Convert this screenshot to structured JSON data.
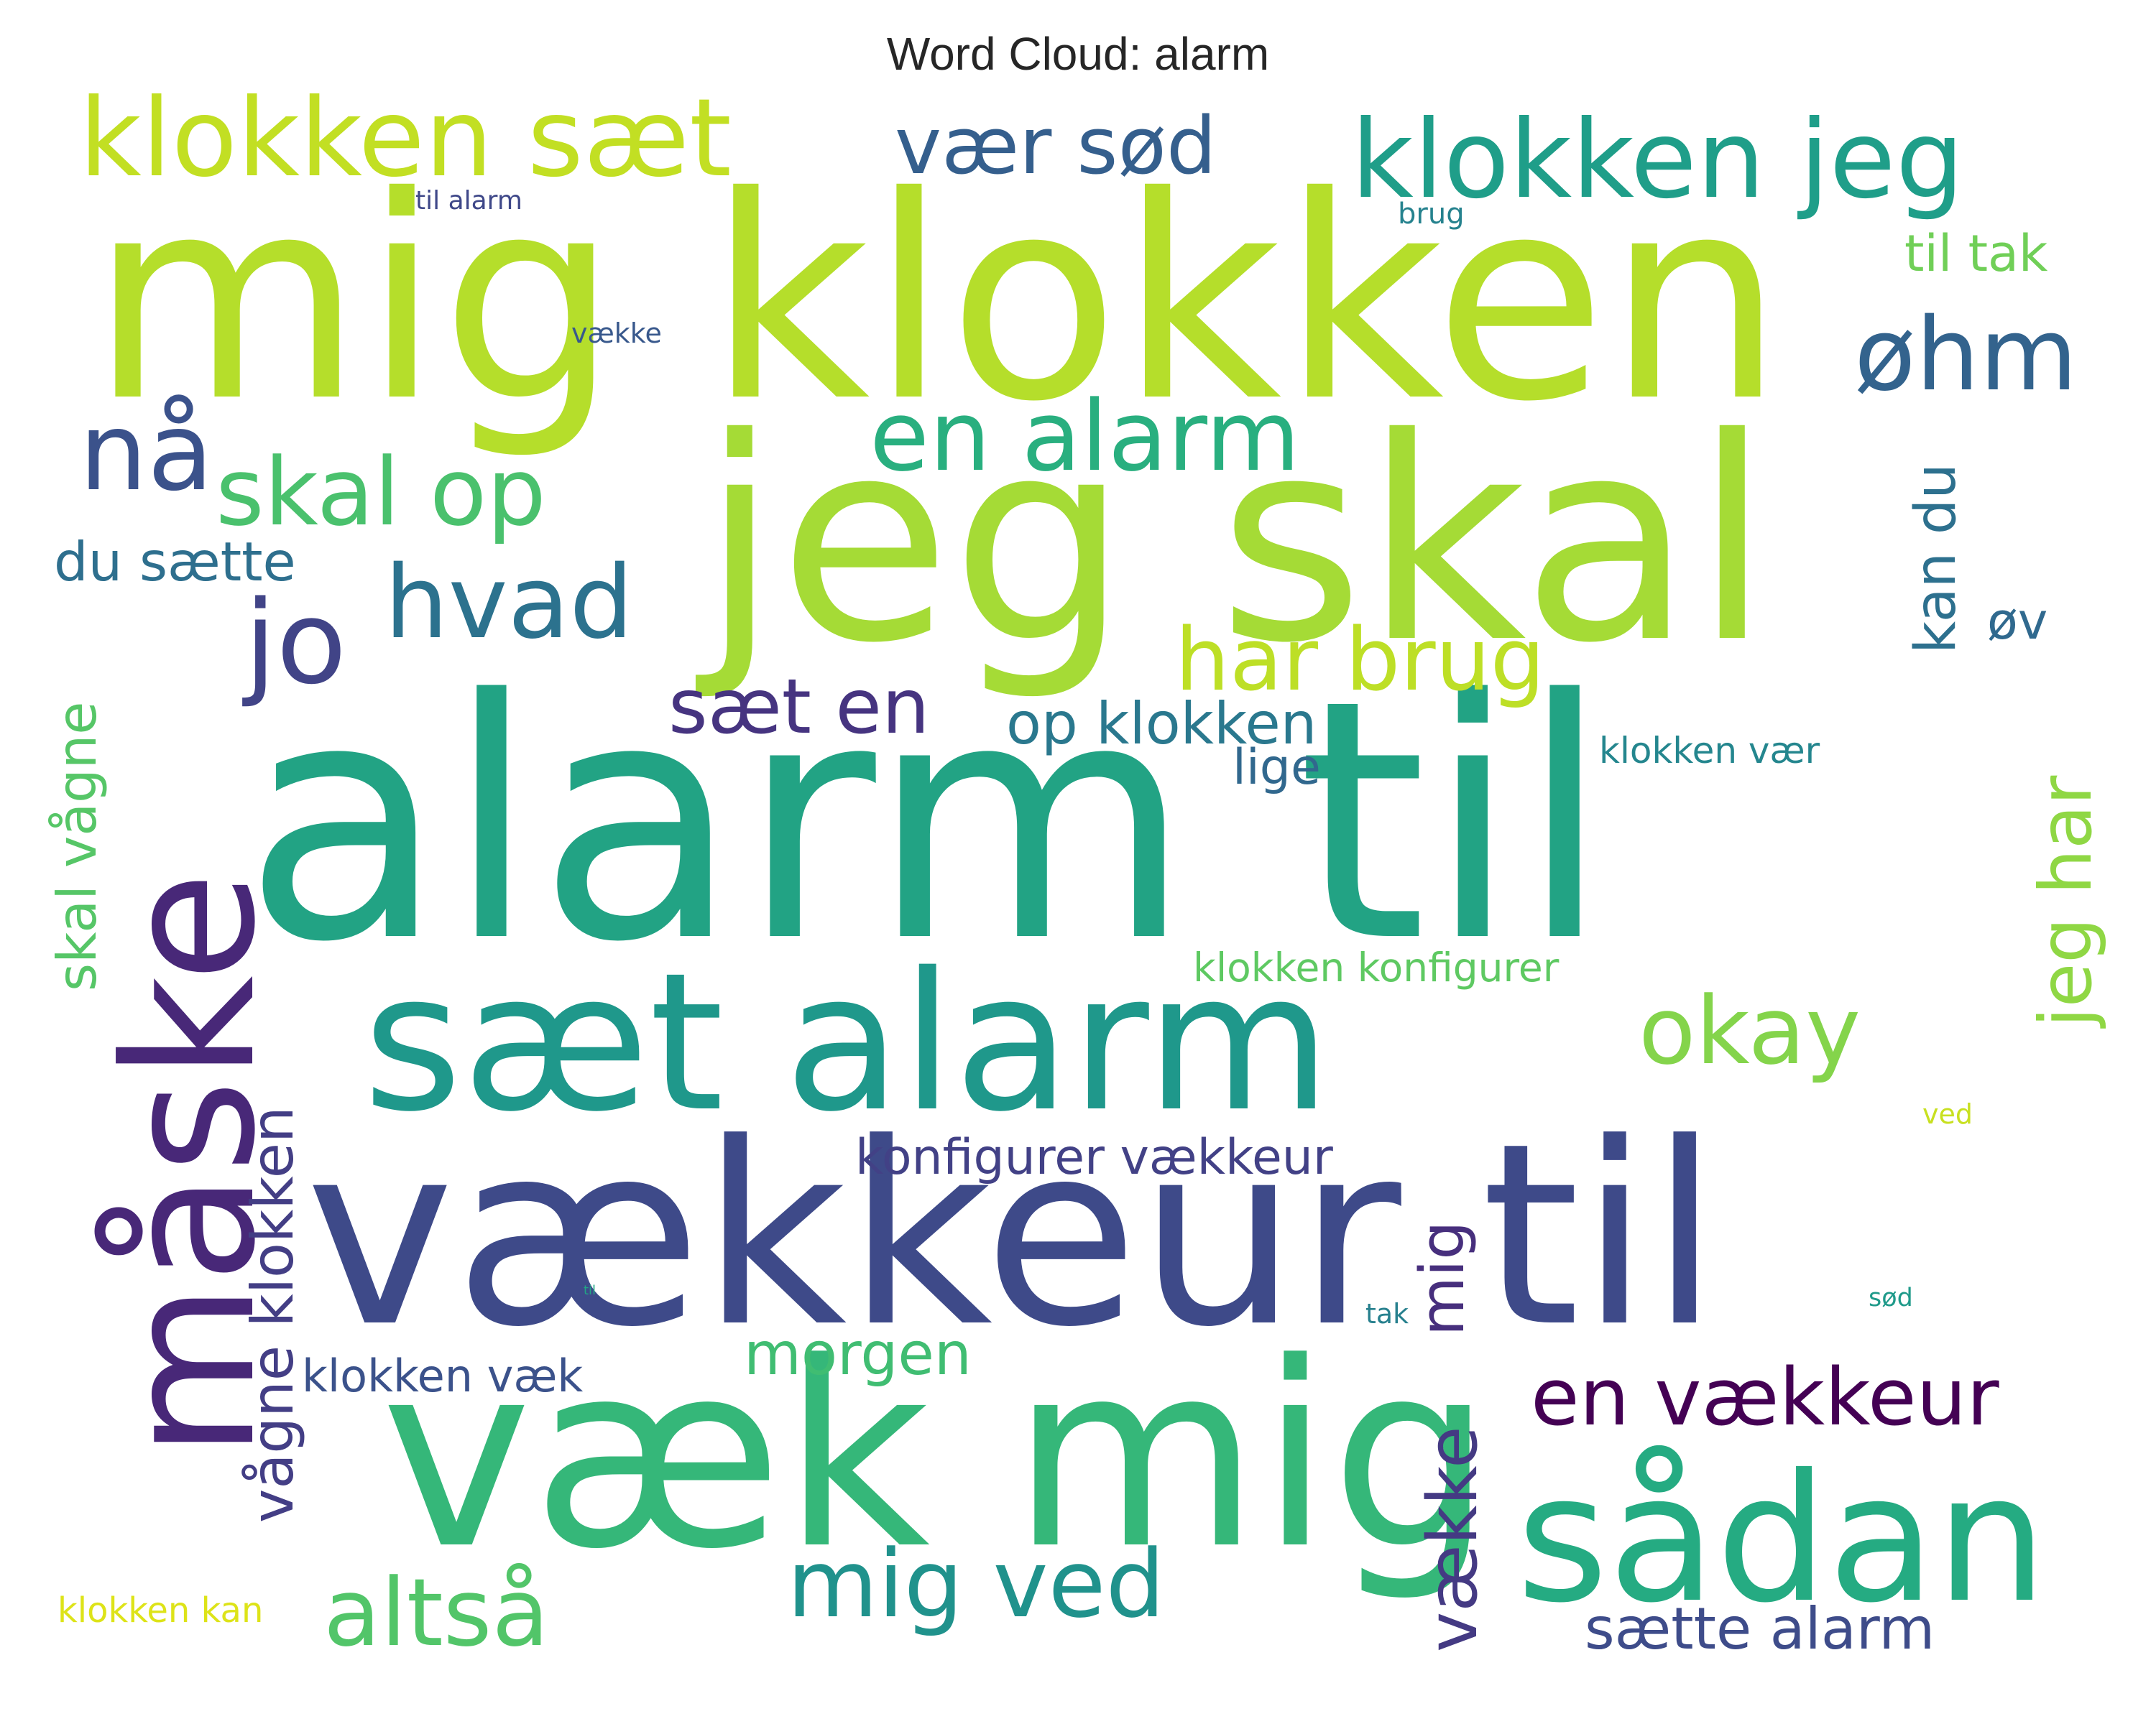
{
  "title": "Word Cloud: alarm",
  "words": [
    {
      "text": "alarm til",
      "color": "#22a384"
    },
    {
      "text": "mig klokken",
      "color": "#b5de2b"
    },
    {
      "text": "jeg skal",
      "color": "#a5db36"
    },
    {
      "text": "vækkeur til",
      "color": "#3e4a89"
    },
    {
      "text": "væk mig",
      "color": "#35b779"
    },
    {
      "text": "sæt alarm",
      "color": "#1f988b"
    },
    {
      "text": "måske",
      "color": "#482878"
    },
    {
      "text": "sådan",
      "color": "#25ab82"
    },
    {
      "text": "klokken sæt",
      "color": "#c2df23"
    },
    {
      "text": "klokken jeg",
      "color": "#1f9e89"
    },
    {
      "text": "en alarm",
      "color": "#29af7f"
    },
    {
      "text": "skal op",
      "color": "#4ac16d"
    },
    {
      "text": "vær sød",
      "color": "#355f8d"
    },
    {
      "text": "øhm",
      "color": "#33638d"
    },
    {
      "text": "nå",
      "color": "#3b528b"
    },
    {
      "text": "jo",
      "color": "#414487"
    },
    {
      "text": "hvad",
      "color": "#2c728e"
    },
    {
      "text": "har brug",
      "color": "#bddf26"
    },
    {
      "text": "sæt en",
      "color": "#463480"
    },
    {
      "text": "op klokken",
      "color": "#2a788e"
    },
    {
      "text": "lige",
      "color": "#31688e"
    },
    {
      "text": "du sætte",
      "color": "#2e6f8e"
    },
    {
      "text": "okay",
      "color": "#84d44b"
    },
    {
      "text": "jeg har",
      "color": "#8fd744"
    },
    {
      "text": "kan du",
      "color": "#2d708e"
    },
    {
      "text": "øv",
      "color": "#30698e"
    },
    {
      "text": "klokken vær",
      "color": "#24868e"
    },
    {
      "text": "til tak",
      "color": "#70cf57"
    },
    {
      "text": "brug",
      "color": "#26828e"
    },
    {
      "text": "til alarm",
      "color": "#3f4889"
    },
    {
      "text": "vække",
      "color": "#38588c"
    },
    {
      "text": "skal vågne",
      "color": "#56c667"
    },
    {
      "text": "klokken konfigurer",
      "color": "#5ec962"
    },
    {
      "text": "konfigurer vækkeur",
      "color": "#424186"
    },
    {
      "text": "mig",
      "color": "#472f7d"
    },
    {
      "text": "vågne klokken",
      "color": "#433e85"
    },
    {
      "text": "morgen",
      "color": "#40bd72"
    },
    {
      "text": "klokken væk",
      "color": "#3b528b"
    },
    {
      "text": "en vækkeur",
      "color": "#440154"
    },
    {
      "text": "vække",
      "color": "#443a83"
    },
    {
      "text": "mig ved",
      "color": "#20928c"
    },
    {
      "text": "altså",
      "color": "#52c569"
    },
    {
      "text": "sætte alarm",
      "color": "#3e4c8a"
    },
    {
      "text": "klokken kan",
      "color": "#dde318"
    },
    {
      "text": "ved",
      "color": "#c8e020"
    },
    {
      "text": "sød",
      "color": "#1f9a8a"
    },
    {
      "text": "tak",
      "color": "#27808e"
    },
    {
      "text": "til",
      "color": "#21a685"
    }
  ]
}
